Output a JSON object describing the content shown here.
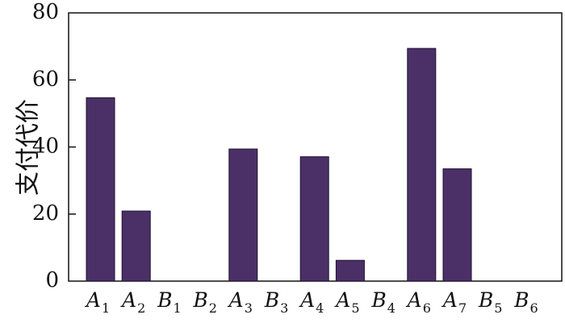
{
  "chart_data": {
    "type": "bar",
    "categories": [
      "A1",
      "A2",
      "B1",
      "B2",
      "A3",
      "B3",
      "A4",
      "A5",
      "B4",
      "A6",
      "A7",
      "B5",
      "B6"
    ],
    "category_labels": [
      {
        "main": "A",
        "sub": "1"
      },
      {
        "main": "A",
        "sub": "2"
      },
      {
        "main": "B",
        "sub": "1"
      },
      {
        "main": "B",
        "sub": "2"
      },
      {
        "main": "A",
        "sub": "3"
      },
      {
        "main": "B",
        "sub": "3"
      },
      {
        "main": "A",
        "sub": "4"
      },
      {
        "main": "A",
        "sub": "5"
      },
      {
        "main": "B",
        "sub": "4"
      },
      {
        "main": "A",
        "sub": "6"
      },
      {
        "main": "A",
        "sub": "7"
      },
      {
        "main": "B",
        "sub": "5"
      },
      {
        "main": "B",
        "sub": "6"
      }
    ],
    "values": [
      54.7,
      20.9,
      0,
      0,
      39.4,
      0,
      37.1,
      6.2,
      0,
      69.4,
      33.5,
      0,
      0
    ],
    "ylabel": "支付代价",
    "ylim": [
      0,
      80
    ],
    "yticks": [
      "0",
      "20",
      "40",
      "60",
      "80"
    ],
    "bar_color": "#4b3068",
    "bar_stroke": "#1e1230",
    "grid": false
  }
}
